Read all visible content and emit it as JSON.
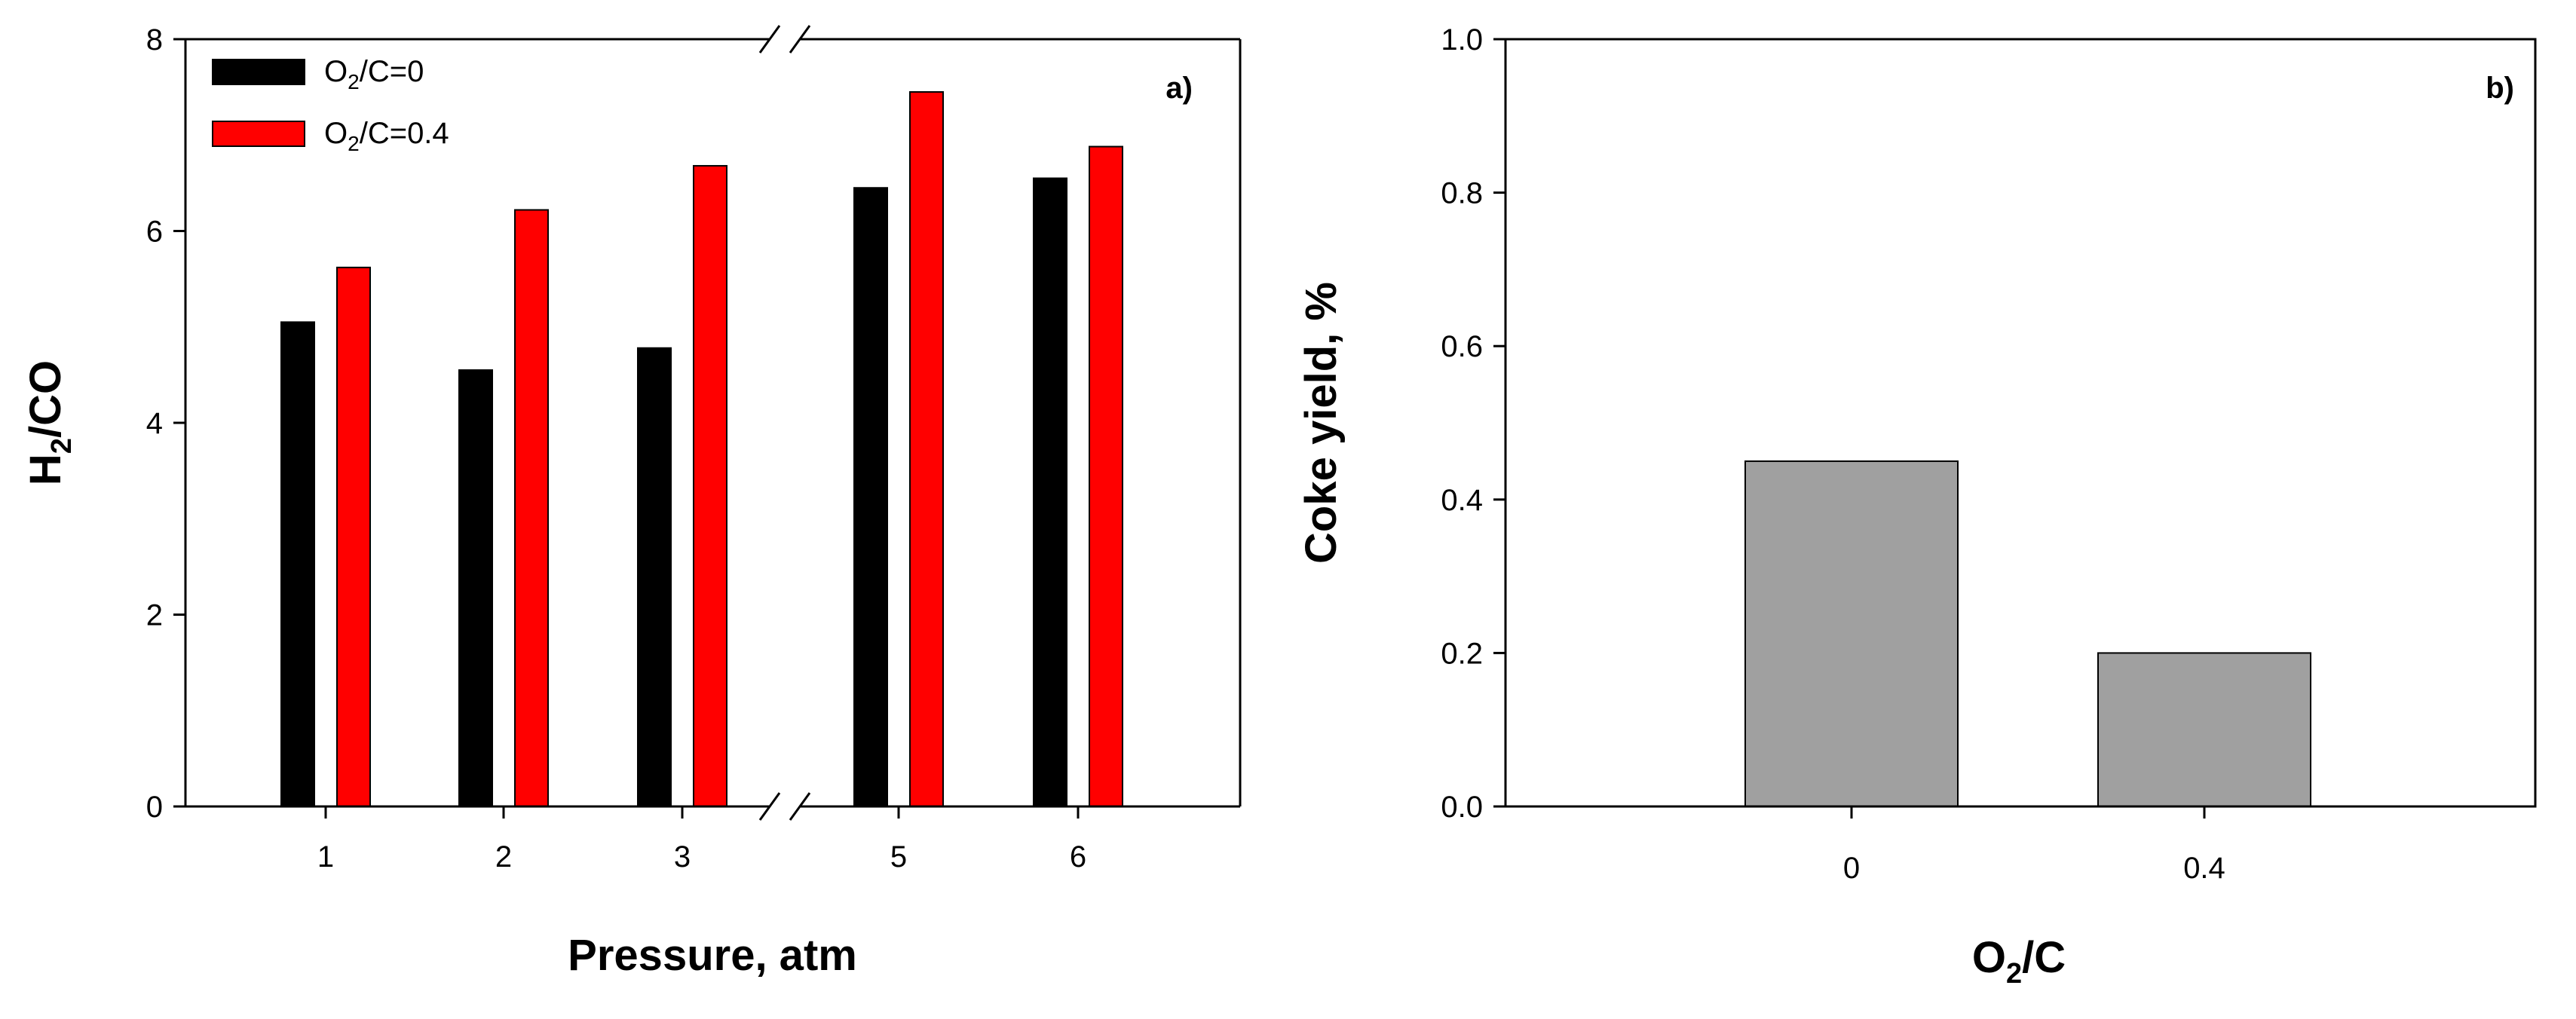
{
  "chart_data": [
    {
      "type": "bar",
      "panel_label": "a)",
      "title": "",
      "categories": [
        "1",
        "2",
        "3",
        "5",
        "6"
      ],
      "series": [
        {
          "name": "O2/C=0",
          "legend_base": "O",
          "legend_sub": "2",
          "legend_rest": "/C=0",
          "color": "#000000",
          "values": [
            5.05,
            4.55,
            4.78,
            6.45,
            6.55
          ]
        },
        {
          "name": "O2/C=0.4",
          "legend_base": "O",
          "legend_sub": "2",
          "legend_rest": "/C=0.4",
          "color": "#ff0000",
          "values": [
            5.62,
            6.22,
            6.68,
            7.45,
            6.88
          ]
        }
      ],
      "xlabel": "Pressure, atm",
      "ylabel": {
        "base": "H",
        "sub": "2",
        "rest": "/CO"
      },
      "ylim": [
        0,
        8
      ],
      "yticks": [
        "0",
        "2",
        "4",
        "6",
        "8"
      ],
      "axis_break_between": [
        "3",
        "5"
      ],
      "legend_position": "top-left",
      "grid": false
    },
    {
      "type": "bar",
      "panel_label": "b)",
      "title": "",
      "categories": [
        "0",
        "0.4"
      ],
      "series": [
        {
          "name": "Coke yield",
          "color": "#a0a0a0",
          "values": [
            0.45,
            0.2
          ]
        }
      ],
      "xlabel": {
        "base": "O",
        "sub": "2",
        "rest": "/C"
      },
      "ylabel": "Coke yield, %",
      "ylim": [
        0,
        1.0
      ],
      "yticks": [
        "0.0",
        "0.2",
        "0.4",
        "0.6",
        "0.8",
        "1.0"
      ],
      "grid": false
    }
  ]
}
